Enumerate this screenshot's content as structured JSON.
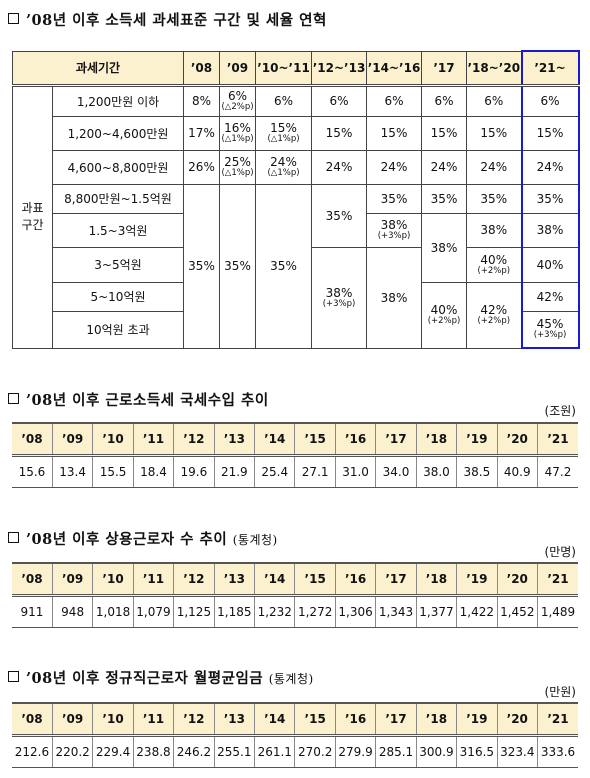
{
  "section1": {
    "title": "’08년 이후 소득세 과세표준 구간 및 세율 연혁",
    "header": [
      "과세기간",
      "’08",
      "’09",
      "’10~’11",
      "’12~’13",
      "’14~’16",
      "’17",
      "’18~’20",
      "’21~"
    ],
    "group_label": "과표\n구간",
    "brackets": [
      "1,200만원 이하",
      "1,200~4,600만원",
      "4,600~8,800만원",
      "8,800만원~1.5억원",
      "1.5~3억원",
      "3~5억원",
      "5~10억원",
      "10억원 초과"
    ],
    "cells": {
      "r1_08": "8%",
      "r1_09": "6%",
      "r1_09n": "(△2%p)",
      "r1_10": "6%",
      "r1_12": "6%",
      "r1_14": "6%",
      "r1_17": "6%",
      "r1_18": "6%",
      "r1_21": "6%",
      "r2_08": "17%",
      "r2_09": "16%",
      "r2_09n": "(△1%p)",
      "r2_10": "15%",
      "r2_10n": "(△1%p)",
      "r2_12": "15%",
      "r2_14": "15%",
      "r2_17": "15%",
      "r2_18": "15%",
      "r2_21": "15%",
      "r3_08": "26%",
      "r3_09": "25%",
      "r3_09n": "(△1%p)",
      "r3_10": "24%",
      "r3_10n": "(△1%p)",
      "r3_12": "24%",
      "r3_14": "24%",
      "r3_17": "24%",
      "r3_18": "24%",
      "r3_21": "24%",
      "r4_08": "35%",
      "r4_09": "35%",
      "r4_10": "35%",
      "r4_12": "35%",
      "r4_14": "35%",
      "r4_17": "35%",
      "r4_18": "35%",
      "r4_21": "35%",
      "r5_14": "38%",
      "r5_14n": "(+3%p)",
      "r5_17": "38%",
      "r5_18": "38%",
      "r5_21": "38%",
      "r6_12": "38%",
      "r6_12n": "(+3%p)",
      "r6_14": "38%",
      "r6_18": "40%",
      "r6_18n": "(+2%p)",
      "r6_21": "40%",
      "r7_17": "40%",
      "r7_17n": "(+2%p)",
      "r7_18": "42%",
      "r7_18n": "(+2%p)",
      "r7_21": "42%",
      "r8_21": "45%",
      "r8_21n": "(+3%p)"
    }
  },
  "section2": {
    "title": "’08년 이후 근로소득세 국세수입 추이",
    "unit": "(조원)",
    "years": [
      "’08",
      "’09",
      "’10",
      "’11",
      "’12",
      "’13",
      "’14",
      "’15",
      "’16",
      "’17",
      "’18",
      "’19",
      "’20",
      "’21"
    ],
    "values": [
      "15.6",
      "13.4",
      "15.5",
      "18.4",
      "19.6",
      "21.9",
      "25.4",
      "27.1",
      "31.0",
      "34.0",
      "38.0",
      "38.5",
      "40.9",
      "47.2"
    ]
  },
  "section3": {
    "title": "’08년 이후 상용근로자 수 추이",
    "source": "(통계청)",
    "unit": "(만명)",
    "years": [
      "’08",
      "’09",
      "’10",
      "’11",
      "’12",
      "’13",
      "’14",
      "’15",
      "’16",
      "’17",
      "’18",
      "’19",
      "’20",
      "’21"
    ],
    "values": [
      "911",
      "948",
      "1,018",
      "1,079",
      "1,125",
      "1,185",
      "1,232",
      "1,272",
      "1,306",
      "1,343",
      "1,377",
      "1,422",
      "1,452",
      "1,489"
    ]
  },
  "section4": {
    "title": "’08년 이후 정규직근로자 월평균임금",
    "source": "(통계청)",
    "unit": "(만원)",
    "years": [
      "’08",
      "’09",
      "’10",
      "’11",
      "’12",
      "’13",
      "’14",
      "’15",
      "’16",
      "’17",
      "’18",
      "’19",
      "’20",
      "’21"
    ],
    "values": [
      "212.6",
      "220.2",
      "229.4",
      "238.8",
      "246.2",
      "255.1",
      "261.1",
      "270.2",
      "279.9",
      "285.1",
      "300.9",
      "316.5",
      "323.4",
      "333.6"
    ]
  }
}
